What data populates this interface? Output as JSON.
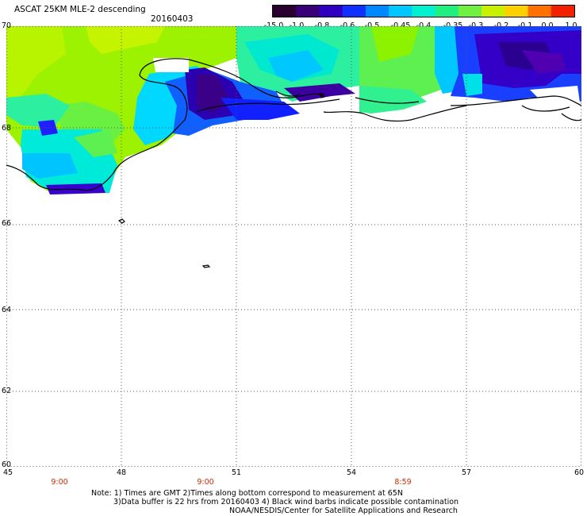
{
  "header": {
    "title": "ASCAT 25KM MLE-2 descending",
    "date": "20160403"
  },
  "colorbar": {
    "labels": [
      "-15.0",
      "-1.0",
      "-0.8",
      "-0.6",
      "-0.5",
      "-0.45",
      "-0.4",
      "-0.35",
      "-0.3",
      "-0.2",
      "-0.1",
      "0.0",
      "1.0"
    ],
    "colors": [
      "#2a0030",
      "#3a0078",
      "#3000c0",
      "#1030ff",
      "#0088ff",
      "#00c8ff",
      "#00f0d0",
      "#20f080",
      "#70f040",
      "#c8f000",
      "#ffd000",
      "#ff7000",
      "#f02000"
    ]
  },
  "map": {
    "lat_range": [
      60,
      70
    ],
    "lon_range": [
      45,
      60
    ],
    "lat_labels": [
      "70",
      "68",
      "66",
      "64",
      "62",
      "60"
    ],
    "lon_labels": [
      "45",
      "48",
      "51",
      "54",
      "57",
      "60"
    ],
    "grid": true
  },
  "time_labels": [
    "9:00",
    "9:00",
    "8:59"
  ],
  "notes": {
    "line1": "Note: 1) Times are GMT 2)Times along bottom correspond to measurement at 65N",
    "line2": "3)Data buffer is 22 hrs from 20160403 4) Black wind barbs indicate possible contamination",
    "line3": "NOAA/NESDIS/Center for Satellite Applications and Research"
  }
}
